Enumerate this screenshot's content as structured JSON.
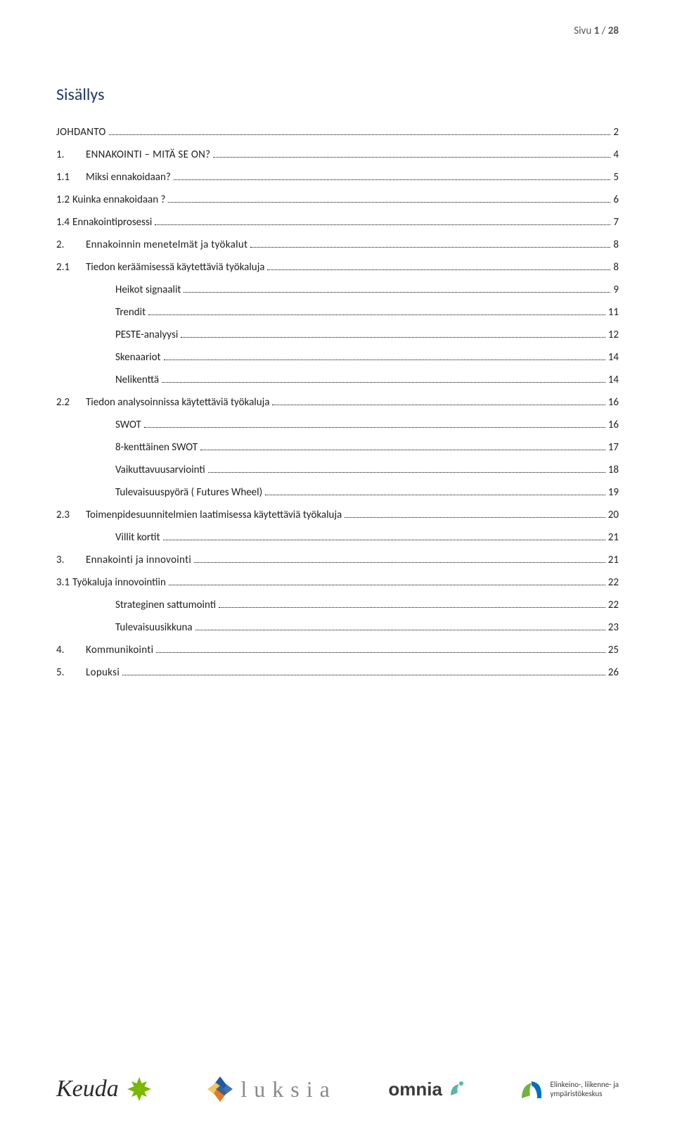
{
  "header": {
    "prefix": "Sivu ",
    "current": "1",
    "sep": " / ",
    "total": "28"
  },
  "title": "Sisällys",
  "toc": [
    {
      "level": 0,
      "num": "",
      "text": "JOHDANTO",
      "page": "2",
      "upper": true
    },
    {
      "level": 0,
      "num": "1.",
      "text": "ENNAKOINTI – MITÄ SE ON?",
      "page": "4",
      "upper": true,
      "spacedNum": true
    },
    {
      "level": 1,
      "num": "1.1",
      "text": "Miksi ennakoidaan?",
      "page": "5"
    },
    {
      "level": 1,
      "num": "1.2",
      "text": "Kuinka ennakoidaan ?",
      "page": "6",
      "tightNum": true
    },
    {
      "level": 1,
      "num": "1.4",
      "text": "Ennakointiprosessi",
      "page": "7",
      "tightNum": true
    },
    {
      "level": 0,
      "num": "2.",
      "text": "Ennakoinnin menetelmät ja työkalut",
      "page": "8",
      "spacedNum": true
    },
    {
      "level": 1,
      "num": "2.1",
      "text": "Tiedon keräämisessä käytettäviä työkaluja",
      "page": "8"
    },
    {
      "level": 2,
      "num": "",
      "text": "Heikot signaalit",
      "page": "9"
    },
    {
      "level": 2,
      "num": "",
      "text": "Trendit",
      "page": "11"
    },
    {
      "level": 2,
      "num": "",
      "text": "PESTE-analyysi",
      "page": "12"
    },
    {
      "level": 2,
      "num": "",
      "text": "Skenaariot",
      "page": "14"
    },
    {
      "level": 2,
      "num": "",
      "text": "Nelikenttä",
      "page": "14"
    },
    {
      "level": 1,
      "num": "2.2",
      "text": "Tiedon analysoinnissa käytettäviä työkaluja",
      "page": "16"
    },
    {
      "level": 2,
      "num": "",
      "text": "SWOT",
      "page": "16"
    },
    {
      "level": 2,
      "num": "",
      "text": "8-kenttäinen SWOT",
      "page": "17"
    },
    {
      "level": 2,
      "num": "",
      "text": "Vaikuttavuusarviointi",
      "page": "18"
    },
    {
      "level": 2,
      "num": "",
      "text": "Tulevaisuuspyörä ( Futures Wheel)",
      "page": "19"
    },
    {
      "level": 1,
      "num": "2.3",
      "text": "Toimenpidesuunnitelmien laatimisessa käytettäviä työkaluja",
      "page": "20"
    },
    {
      "level": 2,
      "num": "",
      "text": "Villit kortit",
      "page": "21"
    },
    {
      "level": 0,
      "num": "3.",
      "text": "Ennakointi ja innovointi",
      "page": "21",
      "spacedNum": true
    },
    {
      "level": 1,
      "num": "3.1",
      "text": "Työkaluja innovointiin",
      "page": "22",
      "tightNum": true
    },
    {
      "level": 2,
      "num": "",
      "text": "Strateginen sattumointi",
      "page": "22"
    },
    {
      "level": 2,
      "num": "",
      "text": "Tulevaisuusikkuna",
      "page": "23"
    },
    {
      "level": 0,
      "num": "4.",
      "text": "Kommunikointi",
      "page": "25",
      "spacedNum": true
    },
    {
      "level": 0,
      "num": "5.",
      "text": "Lopuksi",
      "page": "26",
      "spacedNum": true
    }
  ],
  "logos": {
    "keuda": "Keuda",
    "luksia": "luksia",
    "omnia": "omnia",
    "ely_line1": "Elinkeino-, liikenne- ja",
    "ely_line2": "ympäristökeskus"
  },
  "colors": {
    "title": "#1f3864",
    "text": "#1f1f1f",
    "header_text": "#535353",
    "keuda_green": "#7ab800",
    "luksia_blue": "#1e5aa8",
    "luksia_orange": "#e87722",
    "luksia_yellow": "#f2c75c",
    "omnia_teal": "#5bb5a2",
    "ely_green": "#6eb43f",
    "ely_blue": "#0072bc"
  }
}
